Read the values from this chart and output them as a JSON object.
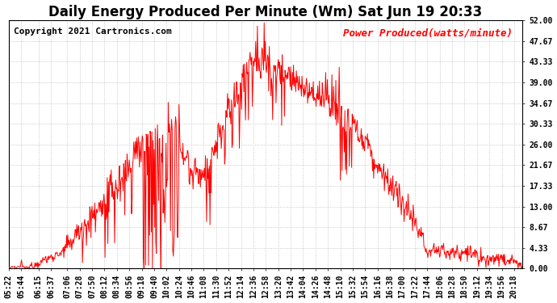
{
  "title": "Daily Energy Produced Per Minute (Wm) Sat Jun 19 20:33",
  "copyright": "Copyright 2021 Cartronics.com",
  "legend_label": "Power Produced(watts/minute)",
  "line_color": "red",
  "background_color": "#ffffff",
  "grid_color": "#bbbbbb",
  "ymin": 0.0,
  "ymax": 52.0,
  "yticks": [
    0.0,
    4.33,
    8.67,
    13.0,
    17.33,
    21.67,
    26.0,
    30.33,
    34.67,
    39.0,
    43.33,
    47.67,
    52.0
  ],
  "xtick_labels": [
    "05:22",
    "05:44",
    "06:15",
    "06:37",
    "07:06",
    "07:28",
    "07:50",
    "08:12",
    "08:34",
    "08:56",
    "09:18",
    "09:40",
    "10:02",
    "10:24",
    "10:46",
    "11:08",
    "11:30",
    "11:52",
    "12:14",
    "12:36",
    "12:58",
    "13:20",
    "13:42",
    "14:04",
    "14:26",
    "14:48",
    "15:10",
    "15:32",
    "15:54",
    "16:16",
    "16:38",
    "17:00",
    "17:22",
    "17:44",
    "18:06",
    "18:28",
    "18:50",
    "19:12",
    "19:34",
    "19:56",
    "20:18"
  ],
  "title_fontsize": 12,
  "copyright_fontsize": 8,
  "legend_fontsize": 9,
  "tick_fontsize": 7
}
